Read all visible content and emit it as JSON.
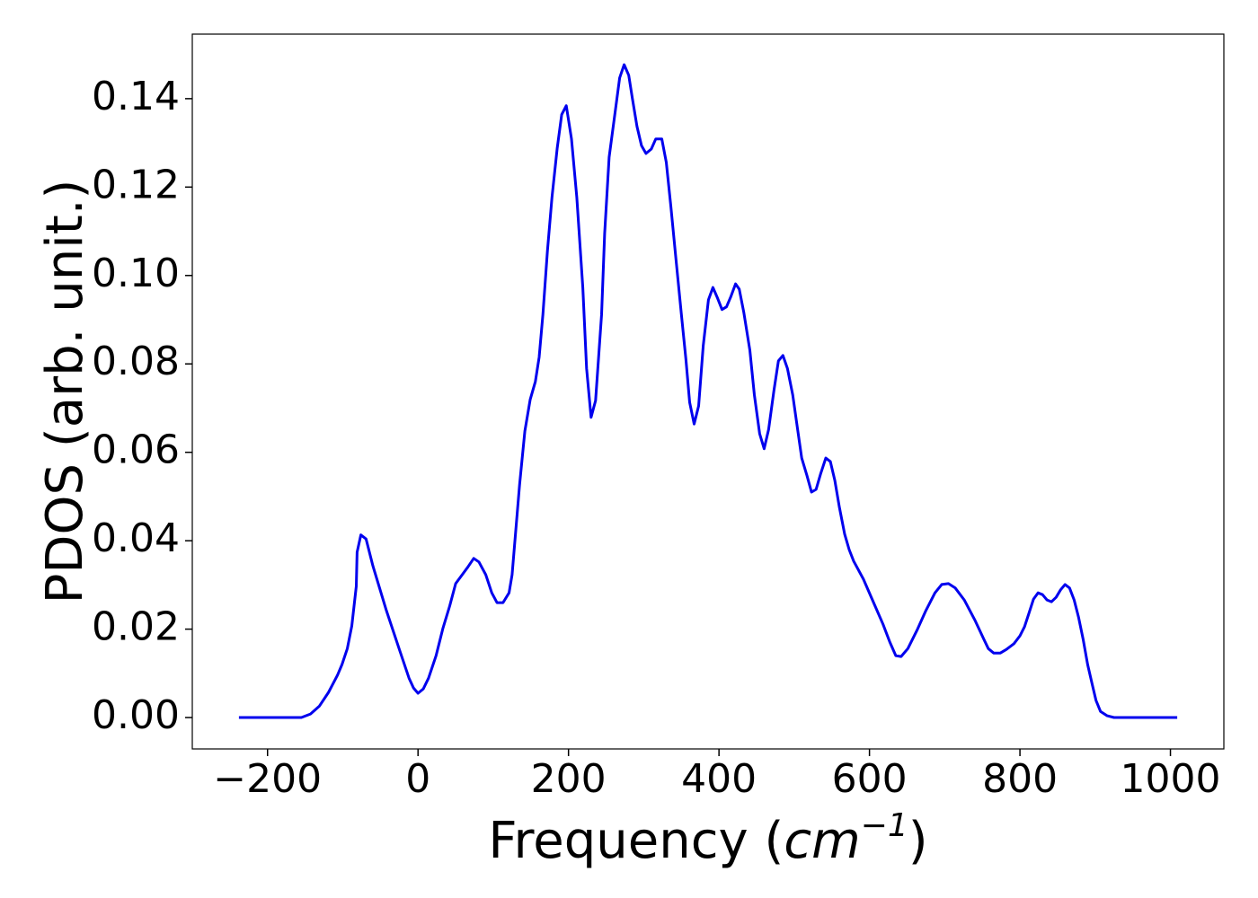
{
  "chart_data": {
    "type": "line",
    "x_label": [
      "Frequency (",
      "cm",
      "−1",
      ")"
    ],
    "y_label": "PDOS (arb. unit.)",
    "xlim": [
      -300,
      1071
    ],
    "ylim": [
      -0.0071,
      0.1546
    ],
    "xticks": [
      {
        "value": -200,
        "label": "−200"
      },
      0,
      200,
      400,
      600,
      800,
      1000
    ],
    "yticks": [
      {
        "value": 0,
        "label": "0.00"
      },
      {
        "value": 0.02,
        "label": "0.02"
      },
      {
        "value": 0.04,
        "label": "0.04"
      },
      {
        "value": 0.06,
        "label": "0.06"
      },
      {
        "value": 0.08,
        "label": "0.08"
      },
      {
        "value": 0.1,
        "label": "0.10"
      },
      {
        "value": 0.12,
        "label": "0.12"
      },
      {
        "value": 0.14,
        "label": "0.14"
      }
    ],
    "grid": false,
    "series": [
      {
        "color": "#0000ee",
        "x": [
          -238,
          -155,
          -143,
          -131,
          -119,
          -107,
          -101,
          -94,
          -88,
          -82,
          -81,
          -76,
          -69,
          -60,
          -42,
          -24,
          -12,
          -6,
          0,
          7,
          14,
          24,
          33,
          42,
          50,
          66,
          74,
          81,
          90,
          98,
          105,
          113,
          121,
          125,
          129,
          135,
          142,
          149,
          156,
          161,
          166,
          172,
          178,
          185,
          191,
          197,
          204,
          211,
          219,
          224,
          230,
          236,
          244,
          248,
          254,
          262,
          268,
          274,
          280,
          285,
          291,
          297,
          303,
          310,
          316,
          324,
          330,
          336,
          343,
          350,
          356,
          361,
          367,
          373,
          379,
          386,
          392,
          398,
          404,
          410,
          416,
          422,
          427,
          433,
          441,
          447,
          454,
          460,
          466,
          473,
          479,
          485,
          491,
          498,
          504,
          510,
          517,
          523,
          529,
          535,
          542,
          548,
          554,
          560,
          567,
          573,
          579,
          592,
          605,
          618,
          627,
          635,
          642,
          651,
          663,
          675,
          687,
          696,
          705,
          714,
          726,
          740,
          752,
          758,
          765,
          774,
          782,
          792,
          800,
          806,
          812,
          818,
          824,
          830,
          836,
          842,
          848,
          854,
          860,
          866,
          872,
          878,
          884,
          890,
          896,
          901,
          907,
          916,
          925,
          1009
        ],
        "values": [
          0,
          0,
          0.0008,
          0.0026,
          0.0057,
          0.0096,
          0.012,
          0.0156,
          0.0207,
          0.0297,
          0.0374,
          0.0413,
          0.0404,
          0.0343,
          0.0242,
          0.015,
          0.0089,
          0.0067,
          0.0055,
          0.0065,
          0.0089,
          0.014,
          0.0201,
          0.0252,
          0.0303,
          0.034,
          0.036,
          0.0352,
          0.0323,
          0.0282,
          0.026,
          0.026,
          0.0282,
          0.0323,
          0.0404,
          0.0526,
          0.0648,
          0.0719,
          0.076,
          0.0815,
          0.0912,
          0.1055,
          0.1177,
          0.1288,
          0.1364,
          0.1384,
          0.1309,
          0.1177,
          0.0973,
          0.079,
          0.0679,
          0.0717,
          0.0912,
          0.1095,
          0.1268,
          0.137,
          0.1447,
          0.1477,
          0.1453,
          0.14,
          0.1337,
          0.1294,
          0.1276,
          0.1286,
          0.1309,
          0.1309,
          0.1256,
          0.1156,
          0.1034,
          0.0912,
          0.0811,
          0.0713,
          0.0664,
          0.0705,
          0.0841,
          0.0945,
          0.0973,
          0.0949,
          0.0923,
          0.0929,
          0.0953,
          0.0981,
          0.0969,
          0.0916,
          0.0831,
          0.073,
          0.0642,
          0.0608,
          0.0652,
          0.074,
          0.0807,
          0.0819,
          0.079,
          0.073,
          0.0658,
          0.0587,
          0.0547,
          0.051,
          0.0516,
          0.0551,
          0.0587,
          0.0579,
          0.0536,
          0.0476,
          0.0415,
          0.038,
          0.0354,
          0.0313,
          0.0262,
          0.0211,
          0.0171,
          0.014,
          0.0138,
          0.0156,
          0.0197,
          0.0242,
          0.0282,
          0.0301,
          0.0303,
          0.0293,
          0.0266,
          0.0221,
          0.0177,
          0.0156,
          0.0146,
          0.0146,
          0.0154,
          0.0167,
          0.0185,
          0.0205,
          0.0236,
          0.0268,
          0.0282,
          0.0278,
          0.0266,
          0.0262,
          0.0272,
          0.0289,
          0.0301,
          0.0293,
          0.0266,
          0.0226,
          0.0177,
          0.012,
          0.0075,
          0.0039,
          0.0014,
          0.0004,
          0,
          0
        ]
      }
    ]
  }
}
